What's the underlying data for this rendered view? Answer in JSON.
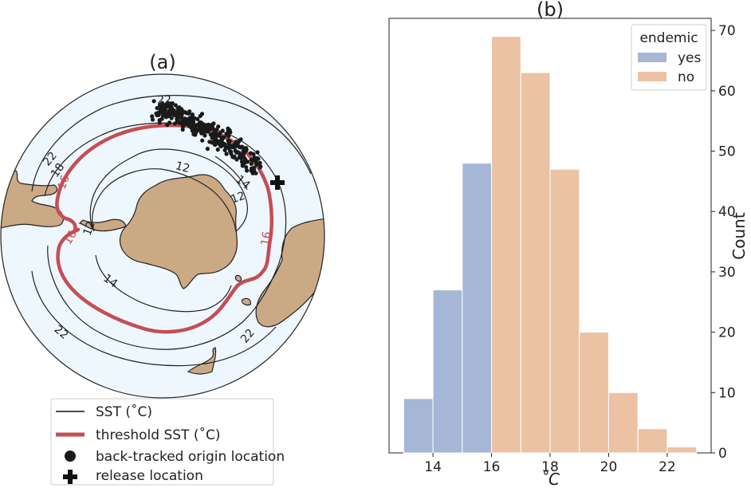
{
  "panel_a": {
    "title": "(a)",
    "contour_labels_black": [
      "22",
      "18",
      "12",
      "12",
      "14",
      "12",
      "14",
      "22",
      "22",
      "22"
    ],
    "contour_labels_red": [
      "16",
      "16",
      "16"
    ],
    "legend": {
      "sst": "SST (˚C)",
      "threshold": "threshold SST (˚C)",
      "origin": "back-tracked origin location",
      "release": "release location"
    },
    "colors": {
      "ocean": "#eef6fe",
      "land": "#cba985",
      "threshold": "#c44e52",
      "points": "#1a1a1a"
    }
  },
  "chart_data": {
    "type": "bar",
    "title": "(b)",
    "xlabel": "˚C",
    "ylabel": "Count",
    "bin_width": 1,
    "xlim": [
      12.5,
      23.5
    ],
    "ylim": [
      0,
      72
    ],
    "xticks": [
      "14",
      "16",
      "18",
      "20",
      "22"
    ],
    "yticks": [
      "0",
      "10",
      "20",
      "30",
      "40",
      "50",
      "60",
      "70"
    ],
    "legend_title": "endemic",
    "legend_position": "top-right",
    "series": [
      {
        "name": "yes",
        "color": "#a5b6d7",
        "bins": [
          13,
          14,
          15
        ],
        "values": [
          9,
          27,
          48
        ]
      },
      {
        "name": "no",
        "color": "#ebc2a4",
        "bins": [
          16,
          17,
          18,
          19,
          20,
          21,
          22
        ],
        "values": [
          69,
          63,
          47,
          20,
          10,
          4,
          1
        ]
      }
    ]
  }
}
